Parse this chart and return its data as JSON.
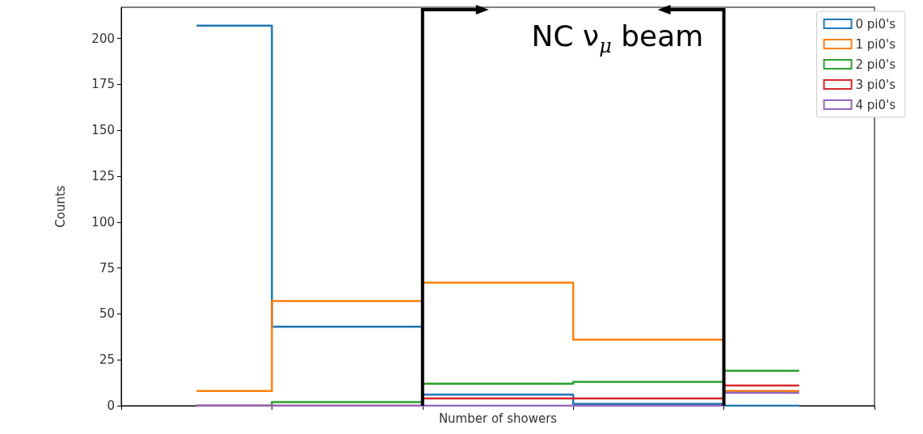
{
  "chart_data": {
    "type": "step",
    "xlabel": "Number of showers",
    "ylabel": "Counts",
    "categories": [
      null,
      null,
      null,
      null,
      null
    ],
    "series": [
      {
        "name": "0 pi0's",
        "color": "#1f77b4",
        "values": [
          207,
          43,
          6,
          1,
          0
        ]
      },
      {
        "name": "1 pi0's",
        "color": "#ff7f0e",
        "values": [
          8,
          57,
          67,
          36,
          8
        ]
      },
      {
        "name": "2 pi0's",
        "color": "#2ca02c",
        "values": [
          0,
          2,
          12,
          13,
          19
        ]
      },
      {
        "name": "3 pi0's",
        "color": "#d62728",
        "values": [
          0,
          0,
          4,
          4,
          11
        ]
      },
      {
        "name": "4 pi0's",
        "color": "#9467bd",
        "values": [
          0,
          0,
          0,
          0,
          7
        ]
      }
    ],
    "ylim": [
      0,
      217
    ],
    "yticks": [
      0,
      25,
      50,
      75,
      100,
      125,
      150,
      175,
      200
    ],
    "legend": "top right",
    "grid": false,
    "tick_labels": "y",
    "annotations": [
      "NC ν$_{μ}$ beam"
    ]
  }
}
